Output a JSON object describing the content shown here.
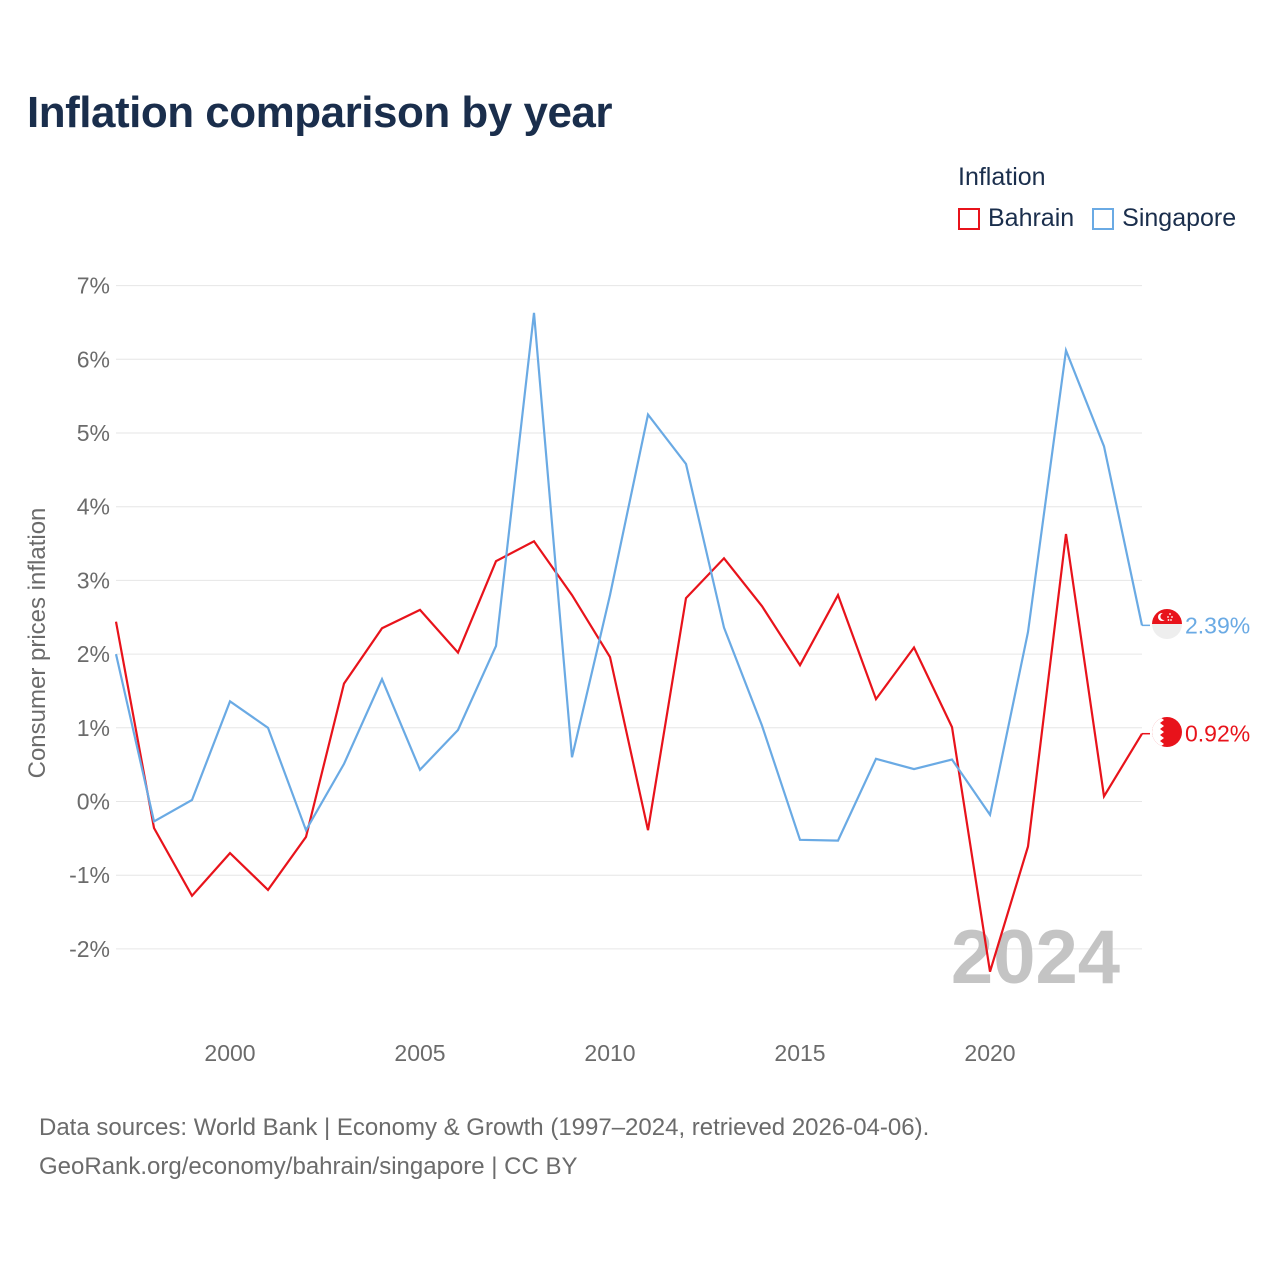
{
  "chart_data": {
    "type": "line",
    "title": "Inflation comparison by year",
    "legend_title": "Inflation",
    "ylabel": "Consumer prices inflation",
    "xlabel": "",
    "ylim": [
      -3,
      7
    ],
    "xlim": [
      1997,
      2024
    ],
    "y_ticks": [
      -2,
      -1,
      0,
      1,
      2,
      3,
      4,
      5,
      6,
      7
    ],
    "y_tick_labels": [
      "-2%",
      "-1%",
      "0%",
      "1%",
      "2%",
      "3%",
      "4%",
      "5%",
      "6%",
      "7%"
    ],
    "x_ticks": [
      2000,
      2005,
      2010,
      2015,
      2020
    ],
    "x_tick_labels": [
      "2000",
      "2005",
      "2010",
      "2015",
      "2020"
    ],
    "year_watermark": "2024",
    "x": [
      1997,
      1998,
      1999,
      2000,
      2001,
      2002,
      2003,
      2004,
      2005,
      2006,
      2007,
      2008,
      2009,
      2010,
      2011,
      2012,
      2013,
      2014,
      2015,
      2016,
      2017,
      2018,
      2019,
      2020,
      2021,
      2022,
      2023,
      2024
    ],
    "series": [
      {
        "name": "Bahrain",
        "color": "#e8131b",
        "end_label": "0.92%",
        "values": [
          2.44,
          -0.36,
          -1.28,
          -0.7,
          -1.2,
          -0.48,
          1.6,
          2.35,
          2.6,
          2.02,
          3.26,
          3.53,
          2.8,
          1.96,
          -0.39,
          2.76,
          3.3,
          2.65,
          1.85,
          2.8,
          1.39,
          2.09,
          1.01,
          -2.31,
          -0.61,
          3.63,
          0.07,
          0.92
        ]
      },
      {
        "name": "Singapore",
        "color": "#6aaae4",
        "end_label": "2.39%",
        "values": [
          2.0,
          -0.27,
          0.02,
          1.36,
          1.0,
          -0.39,
          0.51,
          1.66,
          0.43,
          0.97,
          2.11,
          6.63,
          0.6,
          2.8,
          5.25,
          4.58,
          2.36,
          1.03,
          -0.52,
          -0.53,
          0.58,
          0.44,
          0.57,
          -0.18,
          2.3,
          6.12,
          4.82,
          2.39
        ]
      }
    ]
  },
  "footer": {
    "line1": "Data sources: World Bank | Economy & Growth (1997–2024, retrieved 2026-04-06).",
    "line2": "GeoRank.org/economy/bahrain/singapore | CC BY"
  }
}
